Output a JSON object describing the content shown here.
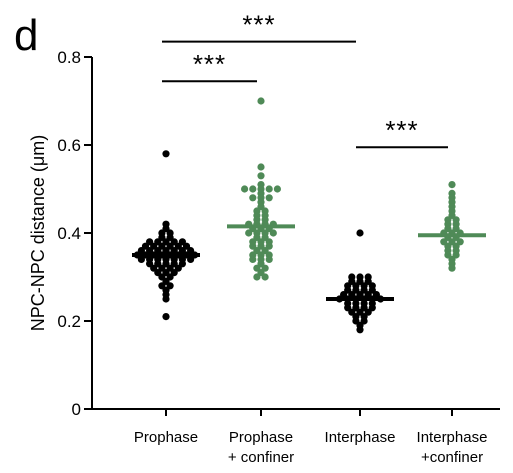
{
  "panel_label": "d",
  "chart_data": {
    "type": "scatter",
    "subtype": "dot-plot with mean line",
    "ylabel": "NPC-NPC distance (μm)",
    "ylim": [
      0,
      0.8
    ],
    "yticks": [
      {
        "value": 0,
        "label": "0"
      },
      {
        "value": 0.2,
        "label": "0.2"
      },
      {
        "value": 0.4,
        "label": "0.4"
      },
      {
        "value": 0.6,
        "label": "0.6"
      },
      {
        "value": 0.8,
        "label": "0.8"
      }
    ],
    "grid": false,
    "colors": {
      "black": "#000000",
      "green": "#4f8a57"
    },
    "categories": [
      {
        "label_lines": [
          "Prophase"
        ],
        "color": "#000000",
        "mean": 0.35,
        "values": [
          0.58,
          0.42,
          0.41,
          0.4,
          0.4,
          0.39,
          0.39,
          0.38,
          0.38,
          0.38,
          0.38,
          0.38,
          0.37,
          0.37,
          0.37,
          0.37,
          0.37,
          0.37,
          0.36,
          0.36,
          0.36,
          0.36,
          0.36,
          0.36,
          0.36,
          0.35,
          0.35,
          0.35,
          0.35,
          0.35,
          0.35,
          0.35,
          0.35,
          0.34,
          0.34,
          0.34,
          0.34,
          0.34,
          0.34,
          0.34,
          0.33,
          0.33,
          0.33,
          0.33,
          0.33,
          0.32,
          0.32,
          0.32,
          0.32,
          0.31,
          0.31,
          0.31,
          0.3,
          0.3,
          0.29,
          0.28,
          0.28,
          0.27,
          0.26,
          0.25,
          0.21
        ]
      },
      {
        "label_lines": [
          "Prophase",
          "+ confiner"
        ],
        "color": "#4f8a57",
        "mean": 0.415,
        "values": [
          0.7,
          0.55,
          0.53,
          0.51,
          0.5,
          0.5,
          0.5,
          0.5,
          0.5,
          0.49,
          0.48,
          0.48,
          0.48,
          0.47,
          0.46,
          0.45,
          0.45,
          0.44,
          0.44,
          0.43,
          0.43,
          0.42,
          0.42,
          0.42,
          0.42,
          0.41,
          0.41,
          0.41,
          0.4,
          0.4,
          0.4,
          0.4,
          0.39,
          0.39,
          0.38,
          0.38,
          0.38,
          0.37,
          0.37,
          0.37,
          0.36,
          0.36,
          0.35,
          0.35,
          0.35,
          0.34,
          0.34,
          0.34,
          0.33,
          0.32,
          0.32,
          0.31,
          0.3,
          0.3
        ]
      },
      {
        "label_lines": [
          "Interphase"
        ],
        "color": "#000000",
        "mean": 0.25,
        "values": [
          0.4,
          0.3,
          0.3,
          0.3,
          0.29,
          0.29,
          0.29,
          0.28,
          0.28,
          0.28,
          0.28,
          0.27,
          0.27,
          0.27,
          0.27,
          0.26,
          0.26,
          0.26,
          0.26,
          0.26,
          0.25,
          0.25,
          0.25,
          0.25,
          0.25,
          0.25,
          0.24,
          0.24,
          0.24,
          0.24,
          0.23,
          0.23,
          0.23,
          0.23,
          0.22,
          0.22,
          0.22,
          0.21,
          0.21,
          0.2,
          0.2,
          0.19,
          0.18
        ]
      },
      {
        "label_lines": [
          "Interphase",
          "+confiner"
        ],
        "color": "#4f8a57",
        "mean": 0.395,
        "values": [
          0.51,
          0.49,
          0.48,
          0.47,
          0.46,
          0.45,
          0.44,
          0.43,
          0.43,
          0.42,
          0.42,
          0.41,
          0.41,
          0.4,
          0.4,
          0.4,
          0.39,
          0.39,
          0.38,
          0.38,
          0.38,
          0.37,
          0.37,
          0.36,
          0.36,
          0.35,
          0.35,
          0.34,
          0.33,
          0.32
        ]
      }
    ],
    "significance": [
      {
        "from": 0,
        "to": 2,
        "y": 0.835,
        "label": "***"
      },
      {
        "from": 0,
        "to": 1,
        "y": 0.745,
        "label": "***"
      },
      {
        "from": 2,
        "to": 3,
        "y": 0.595,
        "label": "***"
      }
    ]
  }
}
